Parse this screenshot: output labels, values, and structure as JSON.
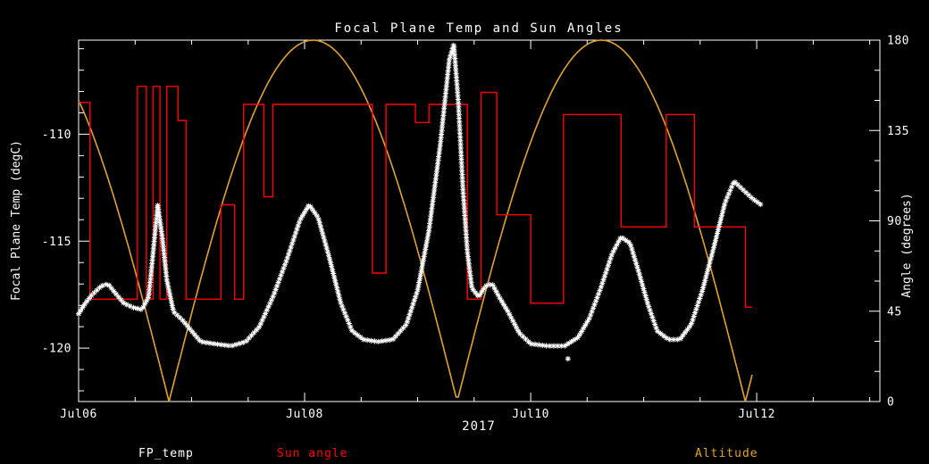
{
  "colors": {
    "background": "#000000",
    "axis": "#ffffff",
    "fp_temp": "#ffffff",
    "sun_angle": "#ff0000",
    "altitude": "#dfa428"
  },
  "chart_data": {
    "type": "line",
    "title": "Focal Plane Temp and Sun Angles",
    "x": {
      "unit": "date",
      "year": "2017",
      "tick_labels": [
        "Jul06",
        "Jul08",
        "Jul10",
        "Jul12"
      ],
      "tick_days": [
        0,
        2,
        4,
        6
      ],
      "range_days": [
        0,
        7.09
      ],
      "minor_step_days": 0.5
    },
    "y_left": {
      "label": "Focal Plane Temp (degC)",
      "ticks": [
        -110,
        -115,
        -120
      ],
      "range": [
        -122.5,
        -105.6
      ],
      "minor_step": 1
    },
    "y_right": {
      "label": "Angle (degrees)",
      "ticks": [
        0,
        45,
        90,
        135,
        180
      ],
      "range": [
        0,
        180
      ],
      "minor_step": 15
    },
    "series": [
      {
        "name": "FP_temp",
        "axis": "left",
        "color": "#ffffff",
        "style": "asterisk_markers",
        "points": [
          [
            0.0,
            -118.4
          ],
          [
            0.06,
            -117.9
          ],
          [
            0.12,
            -117.5
          ],
          [
            0.2,
            -117.1
          ],
          [
            0.26,
            -117.0
          ],
          [
            0.32,
            -117.4
          ],
          [
            0.4,
            -117.9
          ],
          [
            0.48,
            -118.1
          ],
          [
            0.56,
            -118.2
          ],
          [
            0.62,
            -117.6
          ],
          [
            0.66,
            -115.5
          ],
          [
            0.7,
            -113.3
          ],
          [
            0.74,
            -114.8
          ],
          [
            0.78,
            -116.8
          ],
          [
            0.84,
            -118.3
          ],
          [
            0.92,
            -118.7
          ],
          [
            1.0,
            -119.2
          ],
          [
            1.08,
            -119.7
          ],
          [
            1.2,
            -119.8
          ],
          [
            1.35,
            -119.9
          ],
          [
            1.48,
            -119.7
          ],
          [
            1.6,
            -119.0
          ],
          [
            1.72,
            -117.6
          ],
          [
            1.84,
            -115.9
          ],
          [
            1.96,
            -114.0
          ],
          [
            2.04,
            -113.3
          ],
          [
            2.12,
            -113.9
          ],
          [
            2.22,
            -115.8
          ],
          [
            2.32,
            -117.9
          ],
          [
            2.42,
            -119.2
          ],
          [
            2.52,
            -119.6
          ],
          [
            2.65,
            -119.7
          ],
          [
            2.78,
            -119.6
          ],
          [
            2.9,
            -118.9
          ],
          [
            3.0,
            -117.3
          ],
          [
            3.1,
            -114.5
          ],
          [
            3.2,
            -110.5
          ],
          [
            3.28,
            -106.5
          ],
          [
            3.32,
            -105.8
          ],
          [
            3.36,
            -108.5
          ],
          [
            3.4,
            -112.5
          ],
          [
            3.44,
            -115.5
          ],
          [
            3.48,
            -117.2
          ],
          [
            3.54,
            -117.6
          ],
          [
            3.6,
            -117.1
          ],
          [
            3.66,
            -117.0
          ],
          [
            3.72,
            -117.6
          ],
          [
            3.8,
            -118.3
          ],
          [
            3.9,
            -119.3
          ],
          [
            4.0,
            -119.8
          ],
          [
            4.15,
            -119.9
          ],
          [
            4.3,
            -119.9
          ],
          [
            4.42,
            -119.5
          ],
          [
            4.52,
            -118.6
          ],
          [
            4.62,
            -117.2
          ],
          [
            4.72,
            -115.6
          ],
          [
            4.8,
            -114.8
          ],
          [
            4.88,
            -115.1
          ],
          [
            4.96,
            -116.5
          ],
          [
            5.04,
            -118.0
          ],
          [
            5.12,
            -119.2
          ],
          [
            5.22,
            -119.6
          ],
          [
            5.32,
            -119.6
          ],
          [
            5.42,
            -118.9
          ],
          [
            5.52,
            -117.3
          ],
          [
            5.62,
            -115.3
          ],
          [
            5.72,
            -113.2
          ],
          [
            5.8,
            -112.2
          ],
          [
            5.88,
            -112.6
          ],
          [
            5.96,
            -113.0
          ],
          [
            6.04,
            -113.3
          ]
        ]
      },
      {
        "name": "Sun angle",
        "axis": "right",
        "color": "#ff0000",
        "style": "step",
        "steps": [
          [
            0.0,
            0.1,
            149
          ],
          [
            0.1,
            0.52,
            51
          ],
          [
            0.52,
            0.6,
            157
          ],
          [
            0.6,
            0.66,
            51
          ],
          [
            0.66,
            0.72,
            157
          ],
          [
            0.72,
            0.78,
            51
          ],
          [
            0.78,
            0.88,
            157
          ],
          [
            0.88,
            0.95,
            140
          ],
          [
            0.95,
            1.26,
            51
          ],
          [
            1.26,
            1.38,
            98
          ],
          [
            1.38,
            1.46,
            51
          ],
          [
            1.46,
            1.64,
            148
          ],
          [
            1.64,
            1.72,
            102
          ],
          [
            1.72,
            2.6,
            148
          ],
          [
            2.6,
            2.72,
            64
          ],
          [
            2.72,
            2.98,
            148
          ],
          [
            2.98,
            3.1,
            139
          ],
          [
            3.1,
            3.44,
            148
          ],
          [
            3.44,
            3.56,
            51
          ],
          [
            3.56,
            3.7,
            154
          ],
          [
            3.7,
            4.0,
            93
          ],
          [
            4.0,
            4.29,
            49
          ],
          [
            4.29,
            4.8,
            143
          ],
          [
            4.8,
            5.2,
            87
          ],
          [
            5.2,
            5.45,
            143
          ],
          [
            5.45,
            5.9,
            87
          ],
          [
            5.9,
            5.96,
            47
          ]
        ]
      },
      {
        "name": "Altitude",
        "axis": "right",
        "color": "#dfa428",
        "style": "smooth_arcs",
        "model": {
          "shape": "abs_sine",
          "amplitude": 180,
          "period_days": 2.55,
          "zero_day": 0.8,
          "t_start": 0,
          "t_end": 5.97
        },
        "zeros_days": [
          0.8,
          3.35,
          5.9
        ],
        "peaks_days": [
          2.08,
          4.63
        ],
        "peak_value": 180
      }
    ],
    "outliers": {
      "FP_temp": [
        [
          4.33,
          -120.5
        ]
      ]
    }
  }
}
